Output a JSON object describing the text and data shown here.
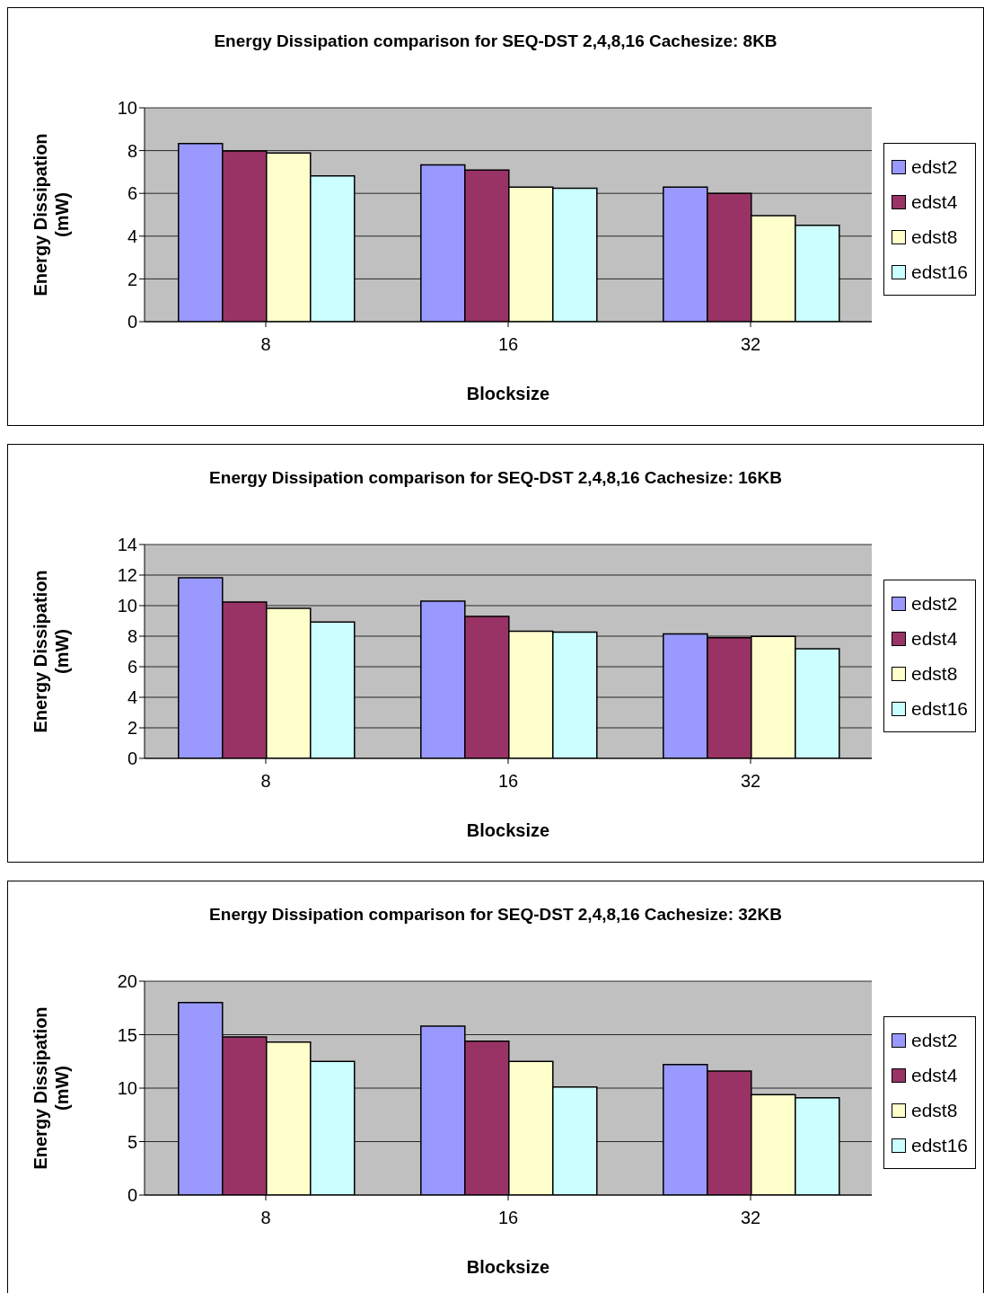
{
  "chart_data": [
    {
      "type": "bar",
      "title": "Energy Dissipation comparison for SEQ-DST 2,4,8,16 Cachesize: 8KB",
      "xlabel": "Blocksize",
      "ylabel": "Energy Dissipation (mW)",
      "categories": [
        "8",
        "16",
        "32"
      ],
      "ylim": [
        0,
        10
      ],
      "yticks": [
        0,
        2,
        4,
        6,
        8,
        10
      ],
      "grid": "y",
      "legend": "right",
      "series": [
        {
          "name": "edst2",
          "color": "#9999ff",
          "values": [
            8.33,
            7.33,
            6.29
          ]
        },
        {
          "name": "edst4",
          "color": "#993366",
          "values": [
            7.98,
            7.09,
            6.0
          ]
        },
        {
          "name": "edst8",
          "color": "#ffffcc",
          "values": [
            7.89,
            6.29,
            4.96
          ]
        },
        {
          "name": "edst16",
          "color": "#ccffff",
          "values": [
            6.82,
            6.24,
            4.51
          ]
        }
      ]
    },
    {
      "type": "bar",
      "title": "Energy Dissipation comparison for SEQ-DST 2,4,8,16 Cachesize: 16KB",
      "xlabel": "Blocksize",
      "ylabel": "Energy Dissipation (mW)",
      "categories": [
        "8",
        "16",
        "32"
      ],
      "ylim": [
        0,
        14
      ],
      "yticks": [
        0,
        2,
        4,
        6,
        8,
        10,
        12,
        14
      ],
      "grid": "y",
      "legend": "right",
      "series": [
        {
          "name": "edst2",
          "color": "#9999ff",
          "values": [
            11.82,
            10.29,
            8.14
          ]
        },
        {
          "name": "edst4",
          "color": "#993366",
          "values": [
            10.23,
            9.29,
            7.89
          ]
        },
        {
          "name": "edst8",
          "color": "#ffffcc",
          "values": [
            9.82,
            8.33,
            7.98
          ]
        },
        {
          "name": "edst16",
          "color": "#ccffff",
          "values": [
            8.92,
            8.26,
            7.17
          ]
        }
      ]
    },
    {
      "type": "bar",
      "title": "Energy Dissipation comparison for SEQ-DST 2,4,8,16 Cachesize: 32KB",
      "xlabel": "Blocksize",
      "ylabel": "Energy Dissipation (mW)",
      "categories": [
        "8",
        "16",
        "32"
      ],
      "ylim": [
        0,
        20
      ],
      "yticks": [
        0,
        5,
        10,
        15,
        20
      ],
      "grid": "y",
      "legend": "right",
      "series": [
        {
          "name": "edst2",
          "color": "#9999ff",
          "values": [
            18.0,
            15.8,
            12.2
          ]
        },
        {
          "name": "edst4",
          "color": "#993366",
          "values": [
            14.8,
            14.4,
            11.6
          ]
        },
        {
          "name": "edst8",
          "color": "#ffffcc",
          "values": [
            14.3,
            12.5,
            9.4
          ]
        },
        {
          "name": "edst16",
          "color": "#ccffff",
          "values": [
            12.5,
            10.1,
            9.1
          ]
        }
      ]
    }
  ]
}
